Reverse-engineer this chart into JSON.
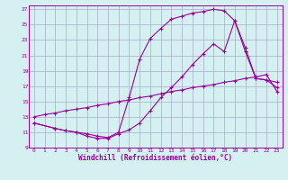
{
  "xlabel": "Windchill (Refroidissement éolien,°C)",
  "background_color": "#d4f0f0",
  "grid_color": "#aaaacc",
  "line_color": "#990099",
  "xlim": [
    -0.5,
    23.5
  ],
  "ylim": [
    9,
    27.5
  ],
  "xticks": [
    0,
    1,
    2,
    3,
    4,
    5,
    6,
    7,
    8,
    9,
    10,
    11,
    12,
    13,
    14,
    15,
    16,
    17,
    18,
    19,
    20,
    21,
    22,
    23
  ],
  "yticks": [
    9,
    11,
    13,
    15,
    17,
    19,
    21,
    23,
    25,
    27
  ],
  "curve1_x": [
    0,
    1,
    2,
    3,
    4,
    5,
    6,
    7,
    8,
    9,
    10,
    11,
    12,
    13,
    14,
    15,
    16,
    17,
    18,
    19,
    20,
    21,
    22,
    23
  ],
  "curve1_y": [
    13.0,
    13.3,
    13.5,
    13.8,
    14.0,
    14.2,
    14.5,
    14.7,
    15.0,
    15.2,
    15.5,
    15.7,
    16.0,
    16.3,
    16.5,
    16.8,
    17.0,
    17.2,
    17.5,
    17.7,
    18.0,
    18.2,
    18.5,
    16.3
  ],
  "curve2_x": [
    0,
    2,
    3,
    4,
    5,
    6,
    7,
    8,
    9,
    10,
    11,
    12,
    13,
    14,
    15,
    16,
    17,
    18,
    19,
    20,
    21,
    22,
    23
  ],
  "curve2_y": [
    12.2,
    11.5,
    11.2,
    11.0,
    10.8,
    10.5,
    10.3,
    11.0,
    15.5,
    20.5,
    23.2,
    24.5,
    25.7,
    26.1,
    26.5,
    26.7,
    27.0,
    26.8,
    25.5,
    22.0,
    18.0,
    17.8,
    17.5
  ],
  "curve3_x": [
    0,
    2,
    3,
    4,
    5,
    6,
    7,
    8,
    9,
    10,
    11,
    12,
    13,
    14,
    15,
    16,
    17,
    18,
    19,
    20,
    21,
    22,
    23
  ],
  "curve3_y": [
    12.2,
    11.5,
    11.2,
    11.0,
    10.5,
    10.2,
    10.2,
    10.8,
    11.3,
    12.2,
    13.8,
    15.5,
    16.8,
    18.2,
    19.8,
    21.2,
    22.5,
    21.5,
    25.5,
    21.5,
    18.0,
    17.8,
    16.8
  ]
}
